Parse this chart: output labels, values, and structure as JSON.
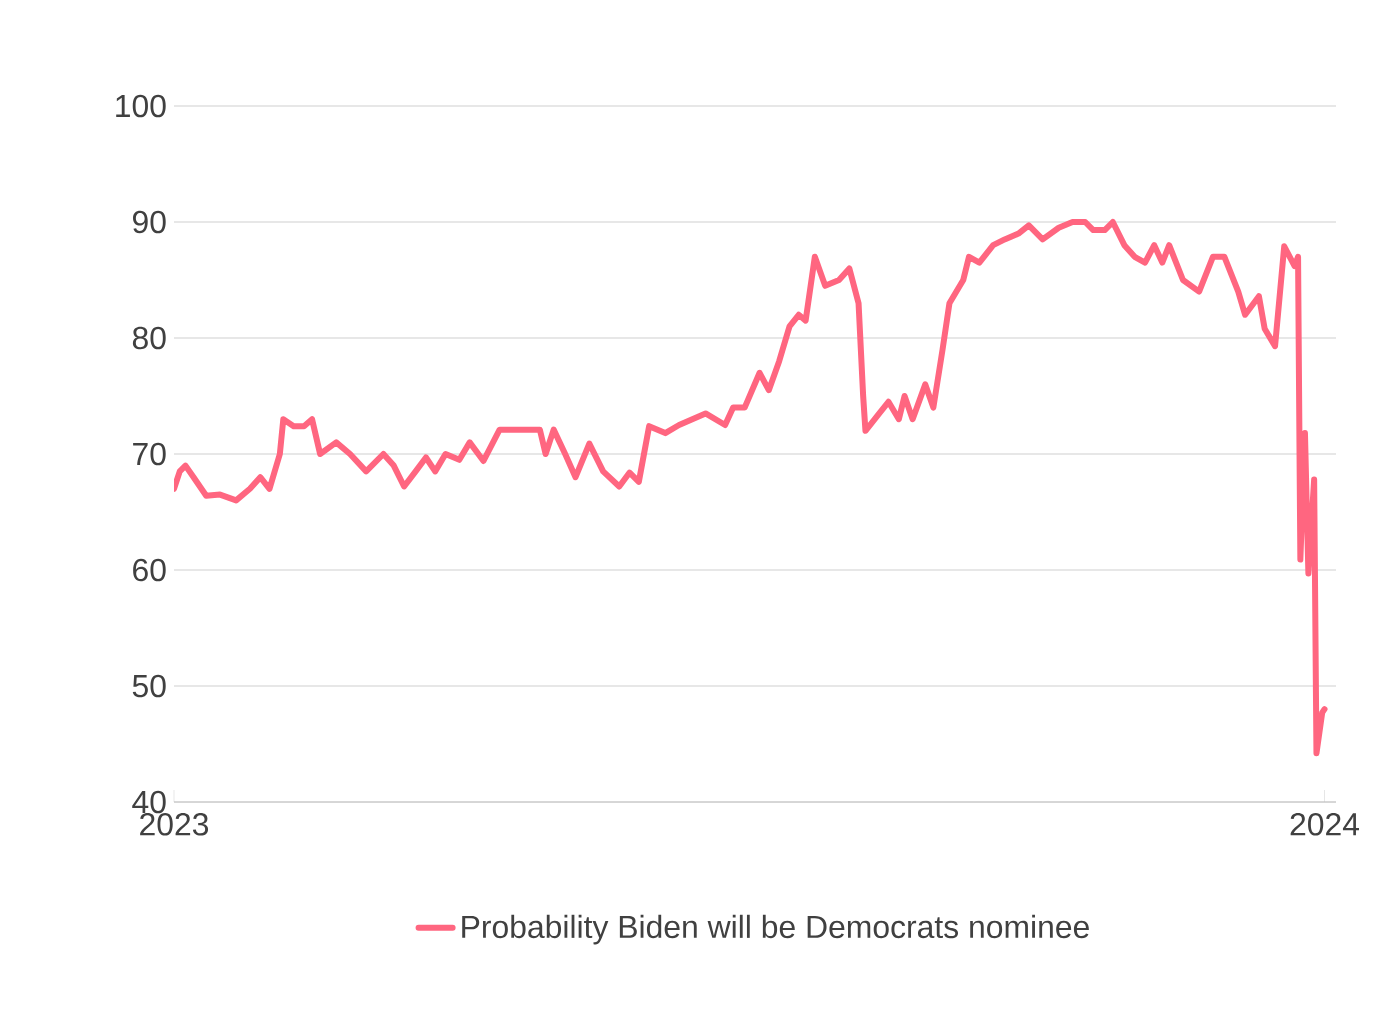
{
  "chart_data": {
    "type": "line",
    "xlim": [
      2023,
      2024.01
    ],
    "ylim": [
      40,
      100
    ],
    "xticks": [
      2023,
      2024
    ],
    "yticks": [
      40,
      50,
      60,
      70,
      80,
      90,
      100
    ],
    "grid": "y",
    "legend": "bottom",
    "line_style": "solid",
    "marker": "none",
    "series": [
      {
        "name": "Probability Biden will be Democrats nominee",
        "color": "#ff6680",
        "x": [
          2023.0,
          2023.005,
          2023.01,
          2023.017,
          2023.028,
          2023.04,
          2023.054,
          2023.066,
          2023.075,
          2023.083,
          2023.092,
          2023.095,
          2023.104,
          2023.113,
          2023.12,
          2023.127,
          2023.141,
          2023.153,
          2023.167,
          2023.182,
          2023.191,
          2023.2,
          2023.21,
          2023.219,
          2023.227,
          2023.236,
          2023.248,
          2023.257,
          2023.269,
          2023.283,
          2023.3,
          2023.318,
          2023.323,
          2023.33,
          2023.34,
          2023.349,
          2023.361,
          2023.373,
          2023.387,
          2023.396,
          2023.404,
          2023.413,
          2023.427,
          2023.439,
          2023.462,
          2023.479,
          2023.486,
          2023.496,
          2023.509,
          2023.517,
          2023.526,
          2023.535,
          2023.543,
          2023.549,
          2023.557,
          2023.566,
          2023.578,
          2023.587,
          2023.595,
          2023.599,
          2023.601,
          2023.613,
          2023.621,
          2023.63,
          2023.635,
          2023.642,
          2023.653,
          2023.66,
          2023.668,
          2023.674,
          2023.686,
          2023.691,
          2023.7,
          2023.712,
          2023.722,
          2023.734,
          2023.743,
          2023.755,
          2023.769,
          2023.781,
          2023.792,
          2023.799,
          2023.809,
          2023.816,
          2023.826,
          2023.835,
          2023.844,
          2023.852,
          2023.859,
          2023.865,
          2023.877,
          2023.891,
          2023.903,
          2023.913,
          2023.925,
          2023.931,
          2023.943,
          2023.948,
          2023.957,
          2023.965,
          2023.974,
          2023.977,
          2023.979,
          2023.983,
          2023.986,
          2023.991,
          2023.993,
          2023.998,
          2024.0
        ],
        "values": [
          67,
          68.5,
          69,
          68,
          66.4,
          66.5,
          66,
          67,
          68,
          67,
          70,
          73,
          72.4,
          72.4,
          73,
          70,
          71,
          70,
          68.5,
          70,
          69,
          67.2,
          68.5,
          69.7,
          68.5,
          70,
          69.5,
          71,
          69.4,
          72.1,
          72.1,
          72.1,
          70,
          72.1,
          70,
          68,
          70.9,
          68.5,
          67.2,
          68.4,
          67.6,
          72.4,
          71.8,
          72.5,
          73.5,
          72.5,
          74,
          74,
          77,
          75.5,
          78,
          81,
          82,
          81.5,
          87,
          84.5,
          85,
          86,
          83,
          75,
          72,
          73.5,
          74.5,
          73,
          75,
          73,
          76,
          74,
          79,
          83,
          85,
          87,
          86.5,
          88,
          88.5,
          89,
          89.7,
          88.5,
          89.5,
          90,
          90,
          89.3,
          89.3,
          90,
          88,
          87,
          86.5,
          88,
          86.5,
          88,
          85,
          84,
          87,
          87,
          84,
          82,
          83.6,
          80.8,
          79.3,
          87.9,
          86.2,
          87,
          60.9,
          71.8,
          59.7,
          67.8,
          44.2,
          47.7,
          48
        ]
      }
    ]
  }
}
